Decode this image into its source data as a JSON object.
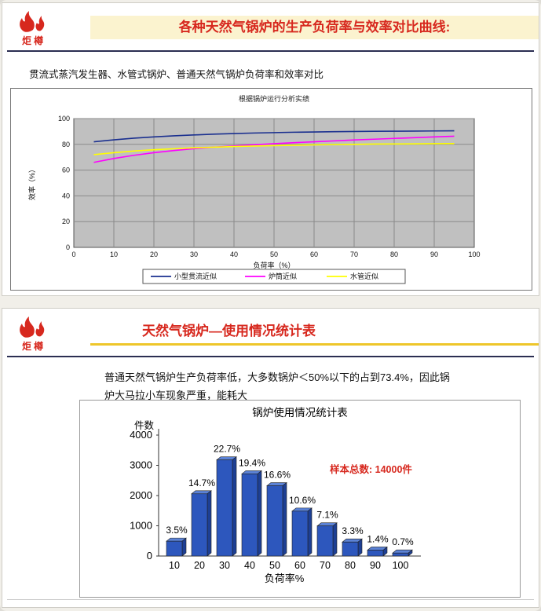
{
  "logo": {
    "text": "炬樽"
  },
  "slide1": {
    "title": "各种天然气锅炉的生产负荷率与效率对比曲线:",
    "subtitle": "贯流式蒸汽发生器、水管式锅炉、普通天然气锅炉负荷率和效率对比"
  },
  "slide2": {
    "title": "天然气锅炉—使用情况统计表",
    "paragraph": "普通天然气锅炉生产负荷率低，大多数锅炉＜50%以下的占到73.4%，因此锅炉大马拉小车现象严重，能耗大"
  },
  "colors": {
    "accent_red": "#d7281e",
    "band_yellow": "#fbf3cf",
    "underline_gold": "#eec62a",
    "plot_gray": "#c0c0c0",
    "bar_blue": "#2d57bd"
  },
  "chart_data": [
    {
      "type": "line",
      "title": "根据锅炉运行分析实绩",
      "xlabel": "负荷率（%）",
      "ylabel": "效率（%）",
      "xlim": [
        0,
        100
      ],
      "ylim": [
        0,
        100
      ],
      "x_ticks": [
        0,
        10,
        20,
        30,
        40,
        50,
        60,
        70,
        80,
        90,
        100
      ],
      "y_ticks": [
        0,
        20,
        40,
        60,
        80,
        100
      ],
      "plot_bg": "#c0c0c0",
      "legend_position": "bottom",
      "grid": true,
      "x": [
        5,
        10,
        15,
        20,
        25,
        30,
        35,
        40,
        45,
        50,
        55,
        60,
        65,
        70,
        75,
        80,
        85,
        90,
        95
      ],
      "series": [
        {
          "name": "小型贯流近似",
          "color": "#1a2f8f",
          "values": [
            82,
            83.5,
            84.8,
            85.8,
            86.6,
            87.3,
            87.9,
            88.4,
            88.8,
            89.1,
            89.4,
            89.6,
            89.8,
            90,
            90.1,
            90.2,
            90.3,
            90.4,
            90.5
          ]
        },
        {
          "name": "炉筒近似",
          "color": "#ff00ff",
          "values": [
            66,
            69,
            71.5,
            73.5,
            75.2,
            76.6,
            77.8,
            78.8,
            79.7,
            80.5,
            81.3,
            82,
            82.7,
            83.4,
            84,
            84.6,
            85.2,
            85.8,
            86.3
          ]
        },
        {
          "name": "水管近似",
          "color": "#ffff00",
          "values": [
            72,
            73.5,
            74.8,
            75.8,
            76.6,
            77.3,
            77.8,
            78.3,
            78.7,
            79,
            79.3,
            79.6,
            79.8,
            80,
            80.2,
            80.3,
            80.4,
            80.5,
            80.6
          ]
        }
      ]
    },
    {
      "type": "bar",
      "title": "锅炉使用情况统计表",
      "xlabel": "负荷率%",
      "ylabel": "件数",
      "categories": [
        "10",
        "20",
        "30",
        "40",
        "50",
        "60",
        "70",
        "80",
        "90",
        "100"
      ],
      "values": [
        490,
        2058,
        3178,
        2716,
        2324,
        1484,
        994,
        462,
        196,
        98
      ],
      "labels": [
        "3.5%",
        "14.7%",
        "22.7%",
        "19.4%",
        "16.6%",
        "10.6%",
        "7.1%",
        "3.3%",
        "1.4%",
        "0.7%"
      ],
      "annotation": "样本总数: 14000件",
      "annotation_color": "#d7281e",
      "ylim": [
        0,
        4000
      ],
      "y_ticks": [
        0,
        1000,
        2000,
        3000,
        4000
      ],
      "bar_color": "#2d57bd",
      "grid": false,
      "total_samples": 14000
    }
  ]
}
